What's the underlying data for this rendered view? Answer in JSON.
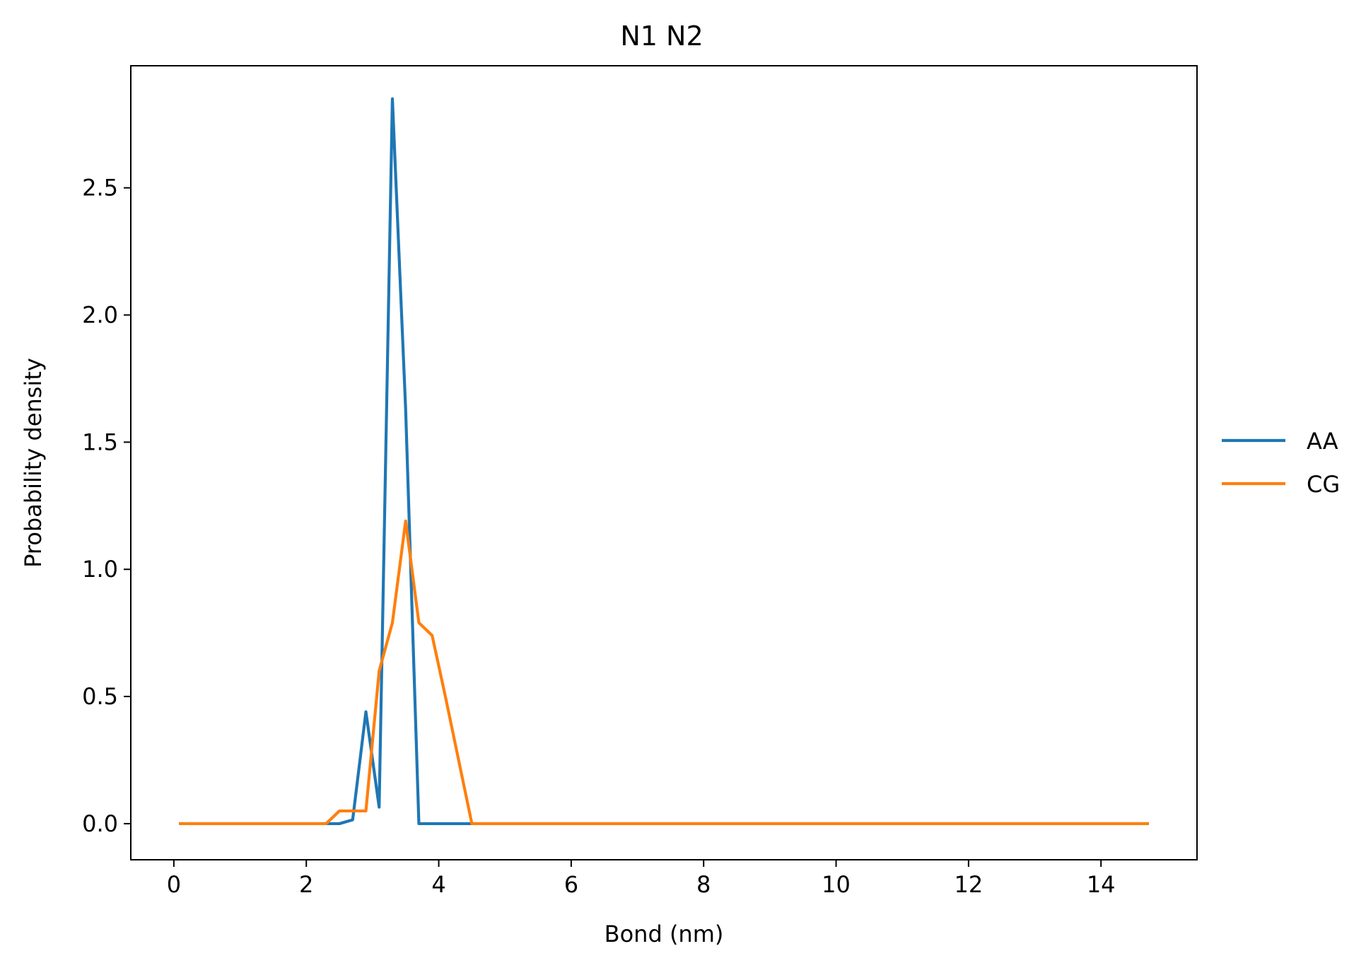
{
  "chart_data": {
    "type": "line",
    "title": "N1 N2",
    "xlabel": "Bond (nm)",
    "ylabel": "Probability density",
    "xlim": [
      -0.65,
      15.45
    ],
    "ylim": [
      -0.142,
      2.98
    ],
    "xticks": [
      0,
      2,
      4,
      6,
      8,
      10,
      12,
      14
    ],
    "xtick_labels": [
      "0",
      "2",
      "4",
      "6",
      "8",
      "10",
      "12",
      "14"
    ],
    "yticks": [
      0.0,
      0.5,
      1.0,
      1.5,
      2.0,
      2.5
    ],
    "ytick_labels": [
      "0.0",
      "0.5",
      "1.0",
      "1.5",
      "2.0",
      "2.5"
    ],
    "grid": false,
    "legend_position": "center-right-outside",
    "series": [
      {
        "name": "AA",
        "color": "#1f77b4",
        "x": [
          0.1,
          2.3,
          2.5,
          2.7,
          2.9,
          3.1,
          3.3,
          3.5,
          3.7,
          3.9,
          4.1,
          4.3,
          4.5,
          4.7,
          14.7
        ],
        "y": [
          0,
          0,
          0,
          0.015,
          0.44,
          0.065,
          2.85,
          1.63,
          0,
          0,
          0,
          0,
          0,
          0,
          0
        ]
      },
      {
        "name": "CG",
        "color": "#ff7f0e",
        "x": [
          0.1,
          2.3,
          2.5,
          2.7,
          2.9,
          3.1,
          3.3,
          3.5,
          3.7,
          3.9,
          4.1,
          4.3,
          4.5,
          14.7
        ],
        "y": [
          0,
          0,
          0.05,
          0.05,
          0.05,
          0.6,
          0.79,
          1.19,
          0.79,
          0.74,
          0.5,
          0.25,
          0,
          0
        ]
      }
    ]
  }
}
